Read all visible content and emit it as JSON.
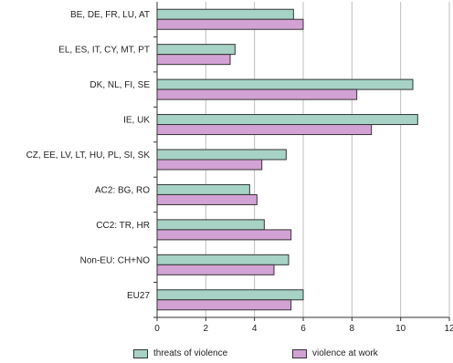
{
  "chart_data": {
    "type": "bar",
    "orientation": "horizontal",
    "categories": [
      "BE, DE, FR, LU, AT",
      "EL, ES, IT, CY, MT, PT",
      "DK, NL, FI, SE",
      "IE, UK",
      "CZ, EE, LV, LT, HU, PL, SI, SK",
      "AC2: BG, RO",
      "CC2: TR, HR",
      "Non-EU: CH+NO",
      "EU27"
    ],
    "series": [
      {
        "name": "threats of violence",
        "color": "#a7d3c6",
        "values": [
          5.6,
          3.2,
          10.5,
          10.7,
          5.3,
          3.8,
          4.4,
          5.4,
          6.0
        ]
      },
      {
        "name": "violence at work",
        "color": "#d3a2d4",
        "values": [
          6.0,
          3.0,
          8.2,
          8.8,
          4.3,
          4.1,
          5.5,
          4.8,
          5.5
        ]
      }
    ],
    "xlim": [
      0,
      12
    ],
    "xticks": [
      0,
      2,
      4,
      6,
      8,
      10,
      12
    ],
    "grid": true,
    "legend_position": "bottom"
  }
}
